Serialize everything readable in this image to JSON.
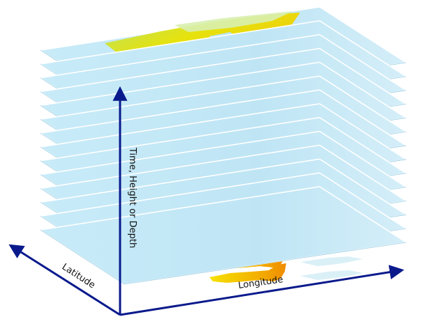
{
  "axes": {
    "vertical_label": "Time, Height or Depth",
    "depth_label": "Latitude",
    "horizontal_label": "Longitude",
    "color": "#0a1a8c"
  },
  "layers": {
    "count": 14,
    "ocean_color": "#bfe6f5",
    "land_colors": [
      "#f0d800",
      "#f6a000",
      "#b8e060"
    ]
  }
}
